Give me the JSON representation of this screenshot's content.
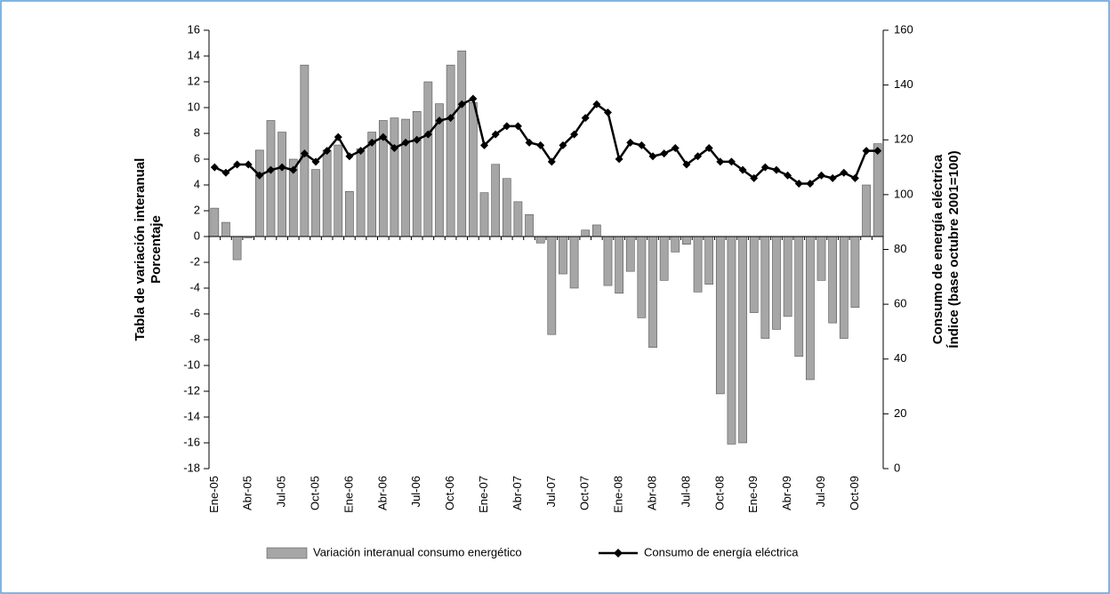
{
  "chart_data": {
    "type": "bar_line",
    "ylabel": [
      "Tabla de variación interanual",
      "Porcentaje"
    ],
    "y2label": [
      "Consumo de energía eléctrica",
      "Índice (base octubre 2001=100)"
    ],
    "categories": [
      "Ene-05",
      null,
      null,
      "Abr-05",
      null,
      null,
      "Jul-05",
      null,
      null,
      "Oct-05",
      null,
      null,
      "Ene-06",
      null,
      null,
      "Abr-06",
      null,
      null,
      "Jul-06",
      null,
      null,
      "Oct-06",
      null,
      null,
      "Ene-07",
      null,
      null,
      "Abr-07",
      null,
      null,
      "Jul-07",
      null,
      null,
      "Oct-07",
      null,
      null,
      "Ene-08",
      null,
      null,
      "Abr-08",
      null,
      null,
      "Jul-08",
      null,
      null,
      "Oct-08",
      null,
      null,
      "Ene-09",
      null,
      null,
      "Abr-09",
      null,
      null,
      "Jul-09",
      null,
      null,
      "Oct-09",
      null,
      null
    ],
    "series": [
      {
        "name": "Variación interanual consumo energético",
        "type": "bar",
        "color": "#a6a6a6",
        "values": [
          2.2,
          1.1,
          -1.8,
          -0.1,
          6.7,
          9.0,
          8.1,
          6.0,
          13.3,
          5.2,
          6.7,
          7.1,
          3.5,
          6.8,
          8.1,
          9.0,
          9.2,
          9.1,
          9.7,
          12.0,
          10.3,
          13.3,
          14.4,
          10.4,
          3.4,
          5.6,
          4.5,
          2.7,
          1.7,
          -0.5,
          -7.6,
          -2.9,
          -4.0,
          0.5,
          0.9,
          -3.8,
          -4.4,
          -2.7,
          -6.3,
          -8.6,
          -3.4,
          -1.2,
          -0.6,
          -4.3,
          -3.7,
          -12.2,
          -16.1,
          -16.0,
          -5.9,
          -7.9,
          -7.2,
          -6.2,
          -9.3,
          -11.1,
          -3.4,
          -6.7,
          -7.9,
          -5.5,
          4.0,
          7.2
        ]
      },
      {
        "name": "Consumo de energía eléctrica",
        "type": "line",
        "axis": "y2",
        "color": "#000000",
        "values": [
          110,
          108,
          111,
          111,
          107,
          109,
          110,
          109,
          115,
          112,
          116,
          121,
          114,
          116,
          119,
          121,
          117,
          119,
          120,
          122,
          127,
          128,
          133,
          135,
          118,
          122,
          125,
          125,
          119,
          118,
          112,
          118,
          122,
          128,
          133,
          130,
          113,
          119,
          118,
          114,
          115,
          117,
          111,
          114,
          117,
          112,
          112,
          109,
          106,
          110,
          109,
          107,
          104,
          104,
          107,
          106,
          108,
          106,
          116,
          116
        ]
      }
    ],
    "ylim": [
      -18,
      16
    ],
    "yticks": [
      -18,
      -16,
      -14,
      -12,
      -10,
      -8,
      -6,
      -4,
      -2,
      0,
      2,
      4,
      6,
      8,
      10,
      12,
      14,
      16
    ],
    "y2lim": [
      0,
      160
    ],
    "y2ticks": [
      0,
      20,
      40,
      60,
      80,
      100,
      120,
      140,
      160
    ],
    "legend": "bottom"
  }
}
